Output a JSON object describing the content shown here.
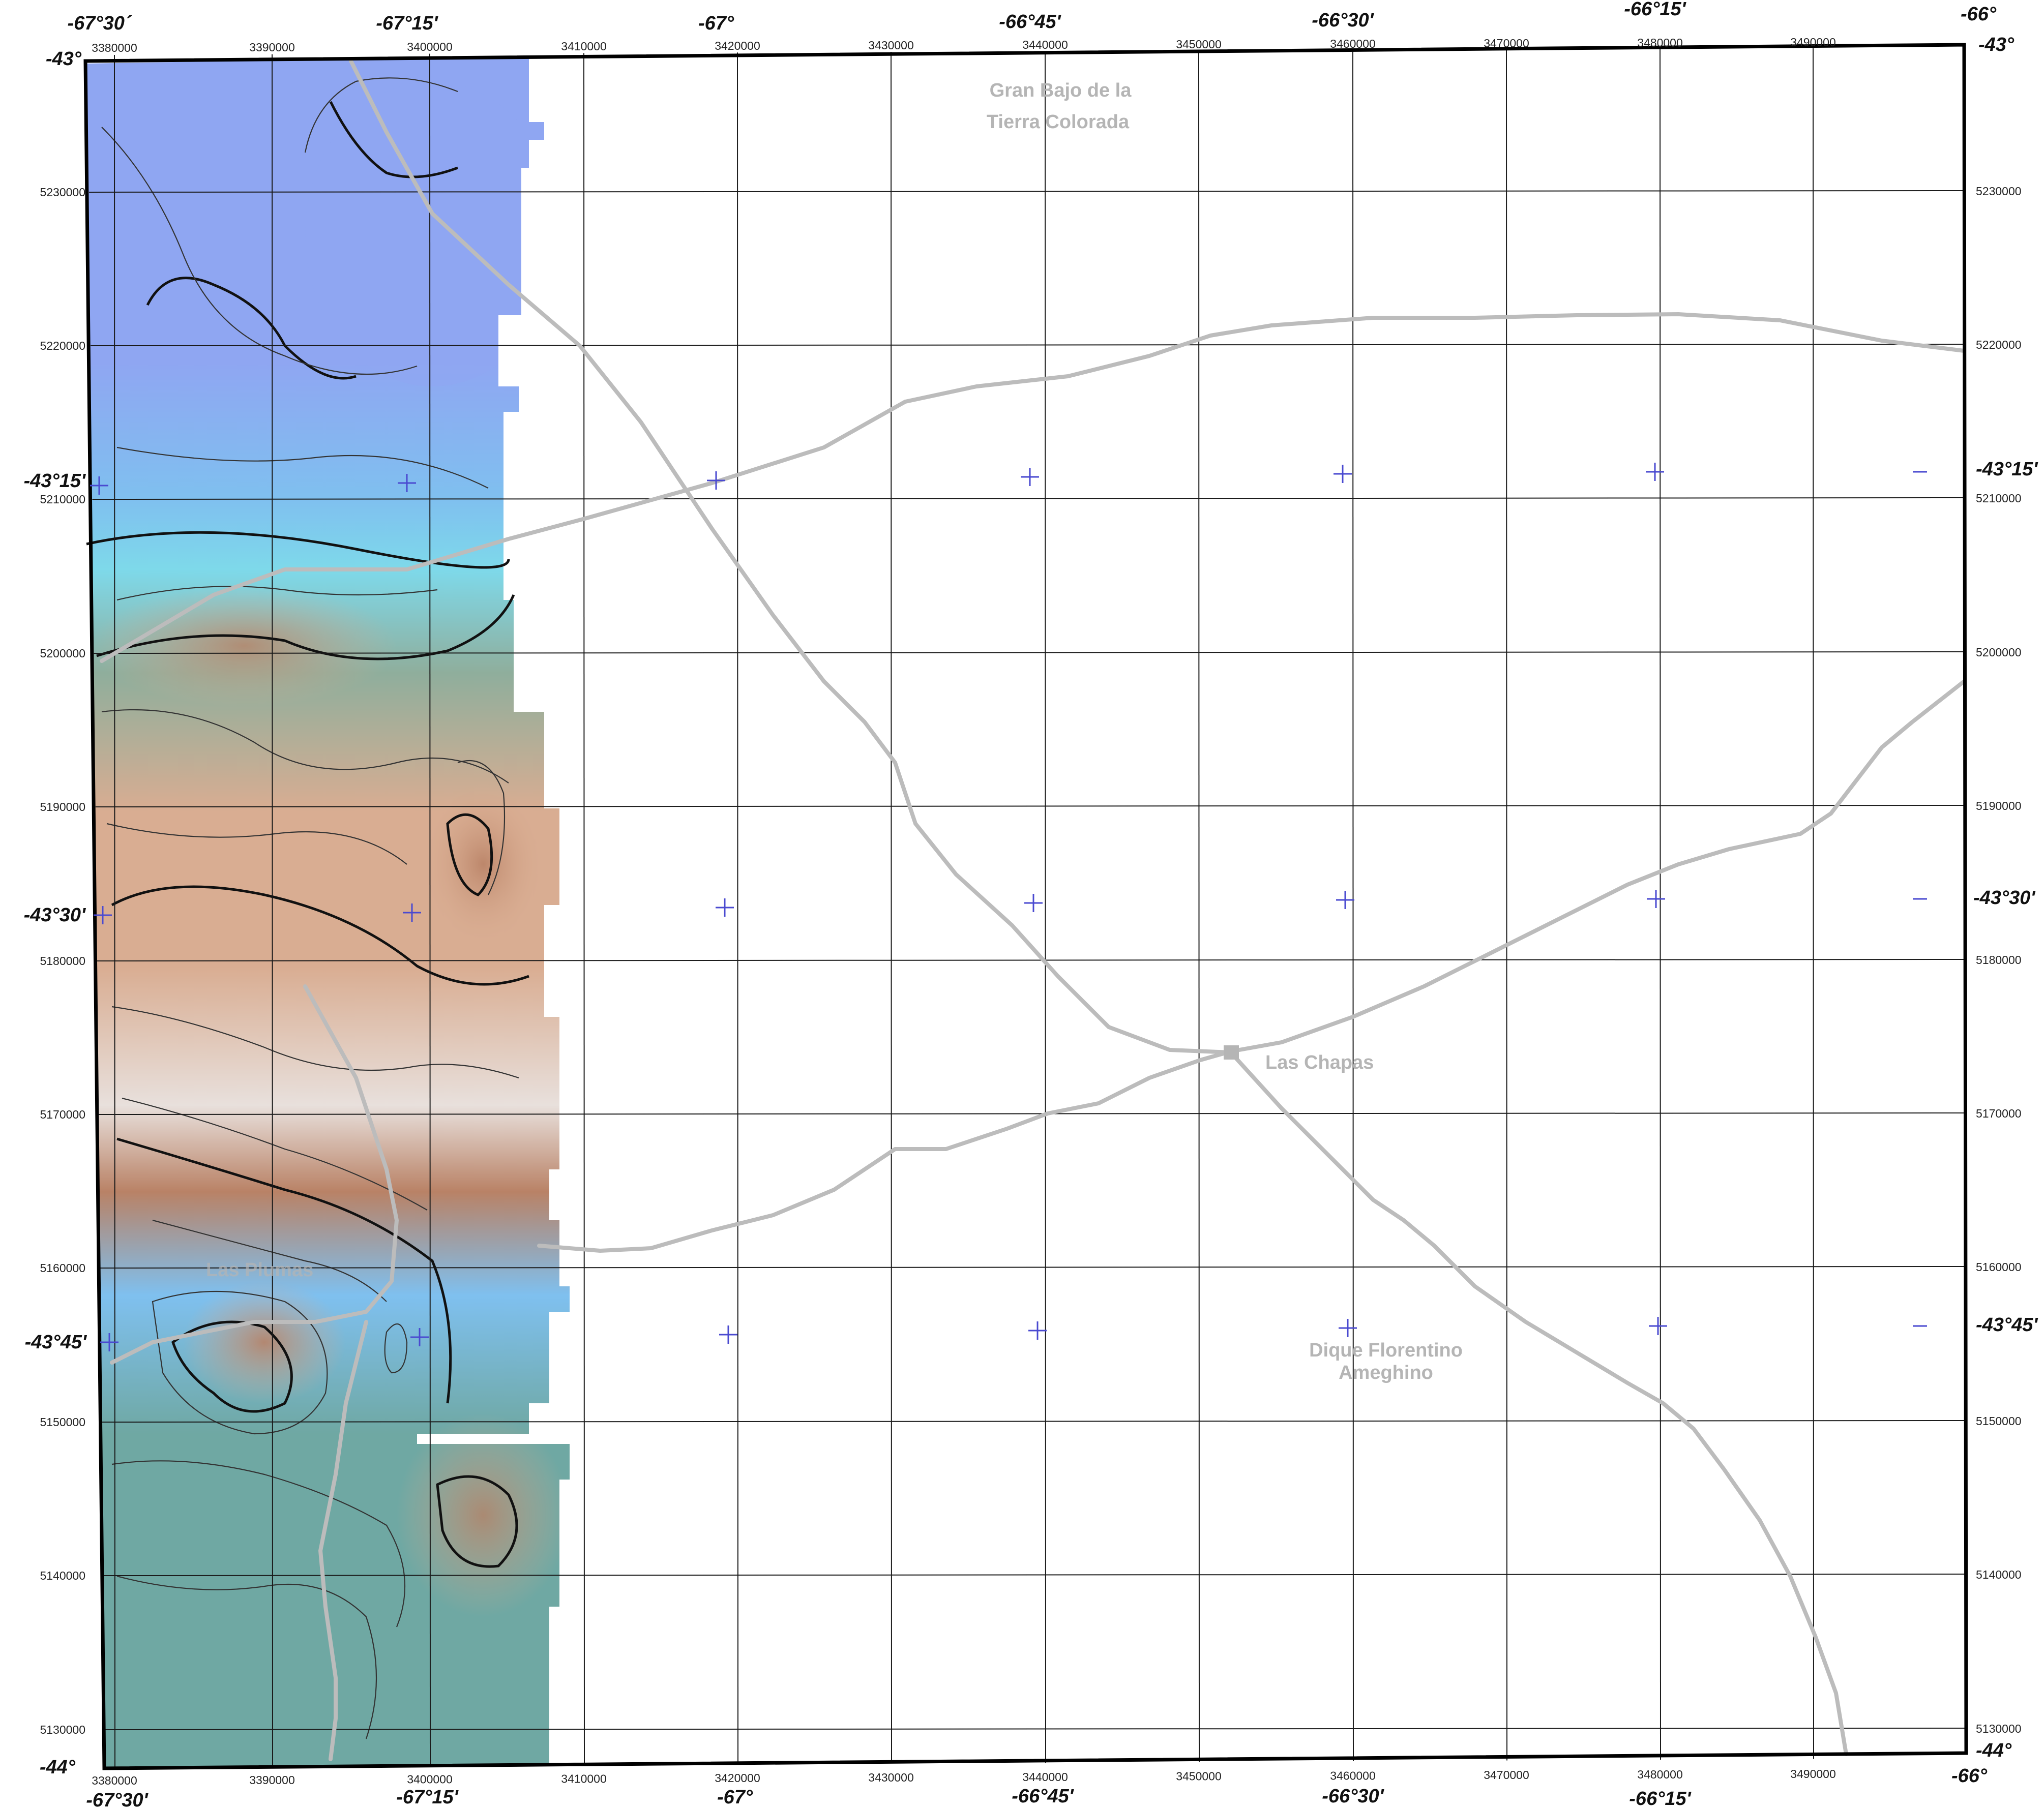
{
  "map": {
    "utm_x_labels": [
      "3380000",
      "3390000",
      "3400000",
      "3410000",
      "3420000",
      "3430000",
      "3440000",
      "3450000",
      "3460000",
      "3470000",
      "3480000",
      "3490000"
    ],
    "utm_y_labels": [
      "5230000",
      "5220000",
      "5210000",
      "5200000",
      "5190000",
      "5180000",
      "5170000",
      "5160000",
      "5150000",
      "5140000",
      "5130000"
    ],
    "top_geo_labels": [
      "-67°30´",
      "-67°15'",
      "-67°",
      "-66°45'",
      "-66°30'",
      "-66°15'",
      "-66°"
    ],
    "bottom_geo_labels": [
      "-67°30'",
      "-67°15'",
      "-67°",
      "-66°45'",
      "-66°30'",
      "-66°15'",
      "-66°"
    ],
    "left_lat_labels": [
      "-43°",
      "-43°15'",
      "-43°30'",
      "-43°45'",
      "-44°"
    ],
    "right_lat_labels": [
      "-43°",
      "-43°15'",
      "-43°30'",
      "-43°45'",
      "-44°"
    ],
    "places": {
      "gran_bajo_line1": "Gran Bajo de la",
      "gran_bajo_line2": "Tierra Colorada",
      "las_chapas": "Las Chapas",
      "dique_line1": "Dique Florentino",
      "dique_line2": "Ameghino",
      "las_plumas": "Las Plumas"
    },
    "colors": {
      "road": "#bcbcbc",
      "frame": "#000000",
      "grid": "#1a1a1a",
      "cross": "#4a4ad0",
      "place_label": "#b5b5b5",
      "relief_deep_blue": "#8fa6f2",
      "relief_sky": "#7fc0ef",
      "relief_cyan": "#7ed9ea",
      "relief_teal": "#6fa8a3",
      "relief_sage": "#8fae9c",
      "relief_tan": "#d9ad92",
      "relief_brown": "#b98266",
      "relief_light": "#e8e0dc"
    }
  }
}
